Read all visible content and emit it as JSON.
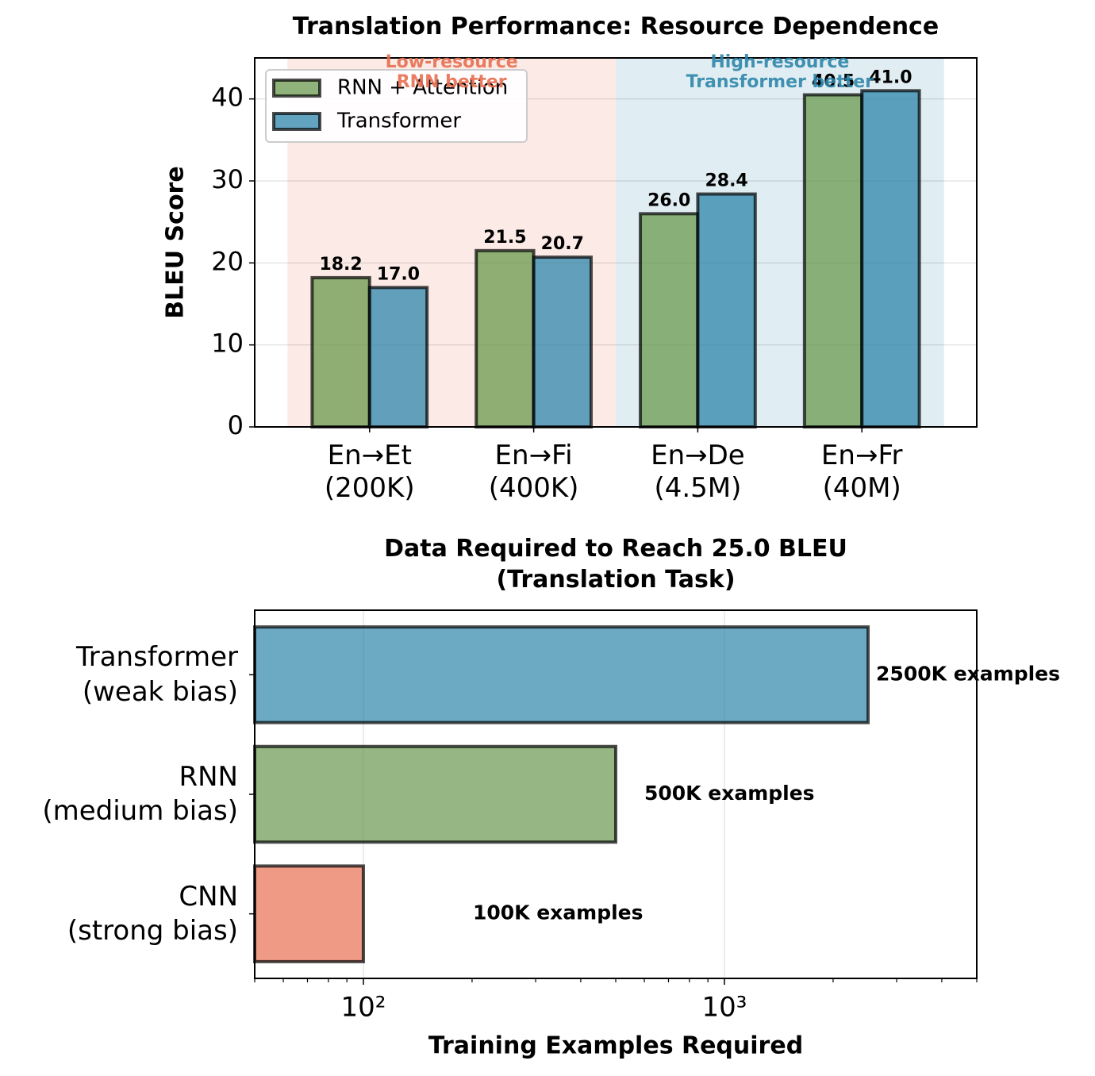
{
  "chart_data": [
    {
      "type": "bar",
      "title": "Translation Performance: Resource Dependence",
      "y_label": "BLEU Score",
      "categories": [
        "En→Et\n(200K)",
        "En→Fi\n(400K)",
        "En→De\n(4.5M)",
        "En→Fr\n(40M)"
      ],
      "series": [
        {
          "name": "RNN + Attention",
          "color": "#6a994e",
          "values": [
            18.2,
            21.5,
            26.0,
            40.5
          ],
          "value_labels": [
            "18.2",
            "21.5",
            "26.0",
            "40.5"
          ]
        },
        {
          "name": "Transformer",
          "color": "#2e86ab",
          "values": [
            17.0,
            20.7,
            28.4,
            41.0
          ],
          "value_labels": [
            "17.0",
            "20.7",
            "28.4",
            "41.0"
          ]
        }
      ],
      "ylim": [
        0,
        45
      ],
      "yticks": [
        0,
        10,
        20,
        30,
        40
      ],
      "grid": true,
      "legend": "upper left",
      "regions": [
        {
          "label": "Low-resource\nRNN better",
          "color": "#e76f51",
          "from": "En→Et\n(200K)",
          "to": "En→Fi\n(400K)"
        },
        {
          "label": "High-resource\nTransformer better",
          "color": "#2e86ab",
          "from": "En→De\n(4.5M)",
          "to": "En→Fr\n(40M)"
        }
      ]
    },
    {
      "type": "barh",
      "title": "Data Required to Reach 25.0 BLEU\n(Translation Task)",
      "x_label": "Training Examples Required",
      "categories": [
        "CNN\n(strong bias)",
        "RNN\n(medium bias)",
        "Transformer\n(weak bias)"
      ],
      "values": [
        100,
        500,
        2500
      ],
      "value_labels": [
        "100K examples",
        "500K examples",
        "2500K examples"
      ],
      "colors": [
        "#e76f51",
        "#6a994e",
        "#2e86ab"
      ],
      "xscale": "log",
      "xlim": [
        50,
        5000
      ],
      "xticks": [
        {
          "value": 100,
          "label": "10²"
        },
        {
          "value": 1000,
          "label": "10³"
        }
      ],
      "xminorticks": [
        50,
        60,
        70,
        80,
        90,
        200,
        300,
        400,
        500,
        600,
        700,
        800,
        900,
        2000,
        3000,
        4000,
        5000
      ],
      "grid": true
    }
  ]
}
